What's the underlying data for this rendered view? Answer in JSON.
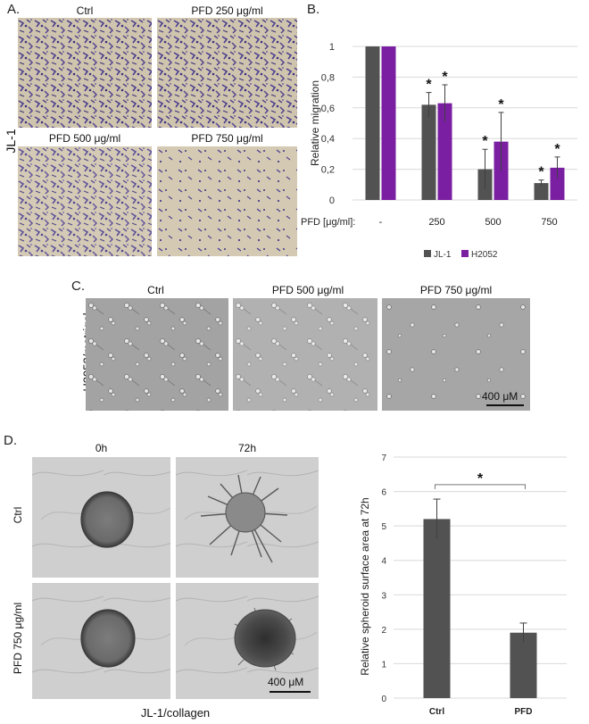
{
  "panels": {
    "A": {
      "letter": "A.",
      "row_label": "JL-1",
      "images": [
        {
          "label": "Ctrl"
        },
        {
          "label": "PFD 250 μg/ml"
        },
        {
          "label": "PFD 500 μg/ml"
        },
        {
          "label": "PFD 750 μg/ml"
        }
      ]
    },
    "B": {
      "letter": "B."
    },
    "C": {
      "letter": "C.",
      "row_label": "H2052/matrigel",
      "images": [
        {
          "label": "Ctrl"
        },
        {
          "label": "PFD 500 μg/ml"
        },
        {
          "label": "PFD 750 μg/ml"
        }
      ],
      "scale_text": "400 μM"
    },
    "D": {
      "letter": "D.",
      "col_labels": [
        "0h",
        "72h"
      ],
      "row_labels": [
        "Ctrl",
        "PFD 750 μg/ml"
      ],
      "bottom_label": "JL-1/collagen",
      "scale_text": "400 μM"
    }
  },
  "colors": {
    "jl1": "#525252",
    "h2052": "#7a1fa2",
    "grid": "#d9d9d9",
    "error": "#404040",
    "invasion_bg": "#c8bba3",
    "invasion_cells": "#4b3c8c",
    "micro_bg": "#9a9a9a"
  },
  "chart_data": [
    {
      "type": "bar",
      "title": "",
      "xlabel": "PFD [μg/ml]:",
      "ylabel": "Relative migration",
      "categories": [
        "-",
        "250",
        "500",
        "750"
      ],
      "ylim": [
        0,
        1
      ],
      "yticks": [
        "0",
        "0,2",
        "0,4",
        "0,6",
        "0,8",
        "1"
      ],
      "grid": true,
      "legend": "bottom",
      "series": [
        {
          "name": "JL-1",
          "color": "#525252",
          "values": [
            1.0,
            0.62,
            0.2,
            0.11
          ],
          "errors": [
            0,
            0.08,
            0.13,
            0.02
          ]
        },
        {
          "name": "H2052",
          "color": "#7a1fa2",
          "values": [
            1.0,
            0.63,
            0.38,
            0.21
          ],
          "errors": [
            0,
            0.12,
            0.19,
            0.07
          ]
        }
      ],
      "annotations": [
        {
          "text": "*",
          "series": 0,
          "category": 1
        },
        {
          "text": "*",
          "series": 1,
          "category": 1
        },
        {
          "text": "*",
          "series": 0,
          "category": 2
        },
        {
          "text": "*",
          "series": 1,
          "category": 2
        },
        {
          "text": "*",
          "series": 0,
          "category": 3
        },
        {
          "text": "*",
          "series": 1,
          "category": 3
        }
      ]
    },
    {
      "type": "bar",
      "title": "",
      "xlabel": "",
      "ylabel": "Relative spheroid surface area at 72h",
      "categories": [
        "Ctrl",
        "PFD"
      ],
      "ylim": [
        0,
        7
      ],
      "yticks": [
        "0",
        "1",
        "2",
        "3",
        "4",
        "5",
        "6",
        "7"
      ],
      "grid": true,
      "series": [
        {
          "name": "",
          "color": "#525252",
          "values": [
            5.2,
            1.9
          ],
          "errors": [
            0.58,
            0.28
          ]
        }
      ],
      "annotations": [
        {
          "text": "*",
          "type": "significance-bracket",
          "from": "Ctrl",
          "to": "PFD"
        }
      ]
    }
  ]
}
